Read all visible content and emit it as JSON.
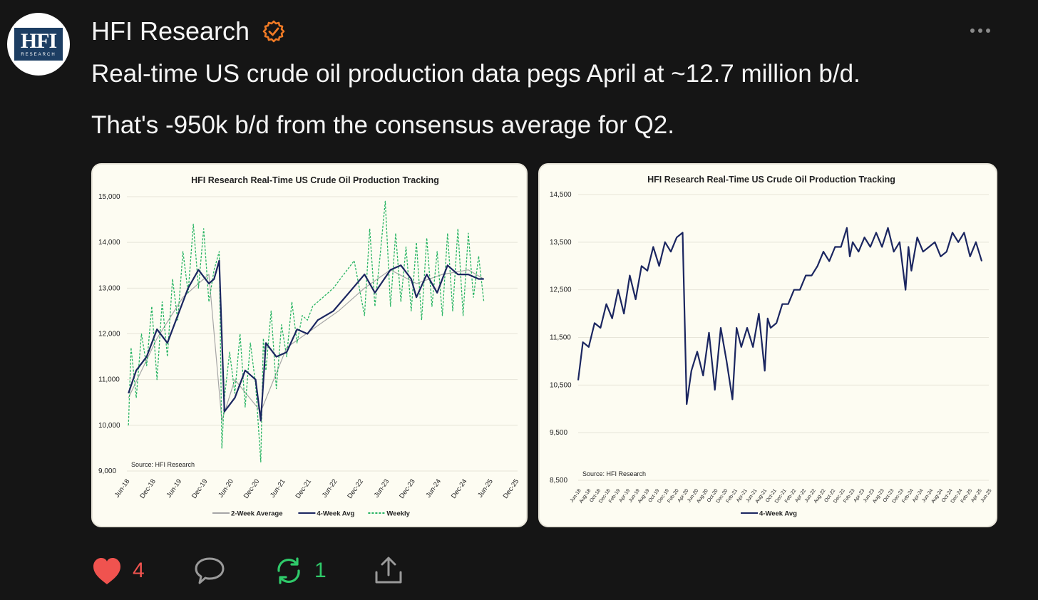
{
  "post": {
    "author": "HFI Research",
    "avatar_text": "HFI",
    "avatar_sub": "RESEARCH",
    "text_line1": "Real-time US crude oil production data pegs April at ~12.7 million b/d.",
    "text_line2": "That's -950k b/d from the consensus average for Q2."
  },
  "actions": {
    "likes": "4",
    "reposts": "1"
  },
  "colors": {
    "background": "#151515",
    "like": "#f0534f",
    "repost": "#2fca6a",
    "verified": "#f07a25",
    "line_4wk": "#1b2660",
    "line_weekly": "#28b463",
    "line_2wk": "#a6a6a6"
  },
  "icons": [
    "verified-icon",
    "more-icon",
    "heart-icon",
    "comment-icon",
    "repost-icon",
    "share-icon"
  ],
  "chart_data": [
    {
      "type": "line",
      "title": "HFI Research Real-Time US Crude Oil Production Tracking",
      "source": "Source: HFI Research",
      "y_ticks": [
        "15,000",
        "14,000",
        "13,000",
        "12,000",
        "11,000",
        "10,000",
        "9,000"
      ],
      "ylim": [
        9000,
        15000
      ],
      "x_ticks": [
        "Jun-18",
        "Dec-18",
        "Jun-19",
        "Dec-19",
        "Jun-20",
        "Dec-20",
        "Jun-21",
        "Dec-21",
        "Jun-22",
        "Dec-22",
        "Jun-23",
        "Dec-23",
        "Jun-24",
        "Dec-24",
        "Jun-25",
        "Dec-25"
      ],
      "legend": [
        "2-Week Average",
        "4-Week Avg",
        "Weekly"
      ],
      "legend_position": "bottom",
      "series": [
        {
          "name": "4-Week Avg",
          "x": [
            2018.45,
            2018.6,
            2018.8,
            2019.0,
            2019.2,
            2019.4,
            2019.6,
            2019.8,
            2020.0,
            2020.1,
            2020.2,
            2020.3,
            2020.5,
            2020.7,
            2020.9,
            2021.0,
            2021.1,
            2021.3,
            2021.5,
            2021.7,
            2021.9,
            2022.1,
            2022.4,
            2022.7,
            2023.0,
            2023.2,
            2023.5,
            2023.7,
            2023.9,
            2024.0,
            2024.2,
            2024.4,
            2024.6,
            2024.8,
            2025.0,
            2025.2,
            2025.3
          ],
          "values": [
            10700,
            11200,
            11500,
            12100,
            11800,
            12400,
            13000,
            13400,
            13100,
            13200,
            13600,
            10300,
            10600,
            11200,
            11000,
            10100,
            11800,
            11500,
            11600,
            12100,
            12000,
            12300,
            12500,
            12900,
            13300,
            12900,
            13400,
            13500,
            13200,
            12800,
            13300,
            12900,
            13500,
            13300,
            13300,
            13200,
            13200
          ]
        },
        {
          "name": "Weekly",
          "x": [
            2018.45,
            2018.5,
            2018.6,
            2018.7,
            2018.8,
            2018.9,
            2019.0,
            2019.1,
            2019.2,
            2019.3,
            2019.4,
            2019.5,
            2019.6,
            2019.7,
            2019.8,
            2019.9,
            2020.0,
            2020.1,
            2020.2,
            2020.25,
            2020.3,
            2020.4,
            2020.5,
            2020.6,
            2020.7,
            2020.8,
            2020.9,
            2021.0,
            2021.05,
            2021.1,
            2021.2,
            2021.3,
            2021.4,
            2021.5,
            2021.6,
            2021.7,
            2021.8,
            2021.9,
            2022.0,
            2022.2,
            2022.4,
            2022.6,
            2022.8,
            2023.0,
            2023.1,
            2023.2,
            2023.3,
            2023.4,
            2023.5,
            2023.6,
            2023.7,
            2023.8,
            2023.9,
            2024.0,
            2024.1,
            2024.2,
            2024.3,
            2024.4,
            2024.5,
            2024.6,
            2024.7,
            2024.8,
            2024.9,
            2025.0,
            2025.1,
            2025.2,
            2025.3
          ],
          "values": [
            10000,
            11700,
            10600,
            12000,
            11300,
            12600,
            11000,
            12700,
            11500,
            13200,
            12300,
            13800,
            12900,
            14400,
            13000,
            14300,
            12700,
            13400,
            13800,
            9500,
            10600,
            11600,
            10700,
            12000,
            10400,
            11800,
            10900,
            9200,
            11900,
            11200,
            12500,
            10800,
            12200,
            11500,
            12700,
            11800,
            12400,
            12300,
            12600,
            12800,
            13000,
            13300,
            13600,
            12400,
            14300,
            12600,
            13700,
            14900,
            12600,
            14200,
            12700,
            13900,
            12500,
            14000,
            12300,
            14100,
            12600,
            13800,
            12400,
            14200,
            12500,
            14300,
            12400,
            14200,
            12800,
            13700,
            12700
          ]
        },
        {
          "name": "2-Week Average",
          "x": [
            2018.45,
            2019.0,
            2019.5,
            2020.0,
            2020.25,
            2020.5,
            2021.0,
            2021.5,
            2022.0,
            2022.5,
            2023.0,
            2023.5,
            2024.0,
            2024.5,
            2025.0,
            2025.3
          ],
          "values": [
            10600,
            11900,
            12800,
            13300,
            10100,
            11000,
            10300,
            11700,
            12100,
            12500,
            13000,
            13400,
            13100,
            13300,
            13400,
            13200
          ]
        }
      ]
    },
    {
      "type": "line",
      "title": "HFI Research Real-Time US Crude Oil Production Tracking",
      "source": "Source: HFI Research",
      "y_ticks": [
        "14,500",
        "13,500",
        "12,500",
        "11,500",
        "10,500",
        "9,500",
        "8,500"
      ],
      "ylim": [
        8500,
        14500
      ],
      "x_ticks": [
        "Jun-18",
        "Aug-18",
        "Oct-18",
        "Dec-18",
        "Feb-19",
        "Apr-19",
        "Jun-19",
        "Aug-19",
        "Oct-19",
        "Dec-19",
        "Feb-20",
        "Apr-20",
        "Jun-20",
        "Aug-20",
        "Oct-20",
        "Dec-20",
        "Feb-21",
        "Apr-21",
        "Jun-21",
        "Aug-21",
        "Oct-21",
        "Dec-21",
        "Feb-22",
        "Apr-22",
        "Jun-22",
        "Aug-22",
        "Oct-22",
        "Dec-22",
        "Feb-23",
        "Apr-23",
        "Jun-23",
        "Aug-23",
        "Oct-23",
        "Dec-23",
        "Feb-24",
        "Apr-24",
        "Jun-24",
        "Aug-24",
        "Oct-24",
        "Dec-24",
        "Feb-25",
        "Apr-25",
        "Jun-25"
      ],
      "legend": [
        "4-Week Avg"
      ],
      "legend_position": "bottom",
      "series": [
        {
          "name": "4-Week Avg",
          "x": [
            2018.42,
            2018.5,
            2018.6,
            2018.7,
            2018.8,
            2018.9,
            2019.0,
            2019.1,
            2019.2,
            2019.3,
            2019.4,
            2019.5,
            2019.6,
            2019.7,
            2019.8,
            2019.9,
            2020.0,
            2020.1,
            2020.2,
            2020.27,
            2020.35,
            2020.45,
            2020.55,
            2020.65,
            2020.75,
            2020.85,
            2020.95,
            2021.05,
            2021.12,
            2021.2,
            2021.3,
            2021.4,
            2021.5,
            2021.6,
            2021.65,
            2021.7,
            2021.8,
            2021.9,
            2022.0,
            2022.1,
            2022.2,
            2022.3,
            2022.4,
            2022.5,
            2022.6,
            2022.7,
            2022.8,
            2022.9,
            2023.0,
            2023.05,
            2023.1,
            2023.2,
            2023.3,
            2023.4,
            2023.5,
            2023.6,
            2023.7,
            2023.8,
            2023.9,
            2024.0,
            2024.05,
            2024.1,
            2024.2,
            2024.3,
            2024.4,
            2024.5,
            2024.6,
            2024.7,
            2024.8,
            2024.9,
            2025.0,
            2025.1,
            2025.2,
            2025.3
          ],
          "values": [
            10600,
            11400,
            11300,
            11800,
            11700,
            12200,
            11900,
            12500,
            12000,
            12800,
            12300,
            13000,
            12900,
            13400,
            13000,
            13500,
            13300,
            13600,
            13700,
            10100,
            10800,
            11200,
            10700,
            11600,
            10400,
            11700,
            11000,
            10200,
            11700,
            11300,
            11700,
            11300,
            12000,
            10800,
            11900,
            11700,
            11800,
            12200,
            12200,
            12500,
            12500,
            12800,
            12800,
            13000,
            13300,
            13100,
            13400,
            13400,
            13800,
            13200,
            13500,
            13300,
            13600,
            13400,
            13700,
            13400,
            13800,
            13300,
            13500,
            12500,
            13400,
            12900,
            13600,
            13300,
            13400,
            13500,
            13200,
            13300,
            13700,
            13500,
            13700,
            13200,
            13500,
            13100
          ]
        }
      ]
    }
  ]
}
